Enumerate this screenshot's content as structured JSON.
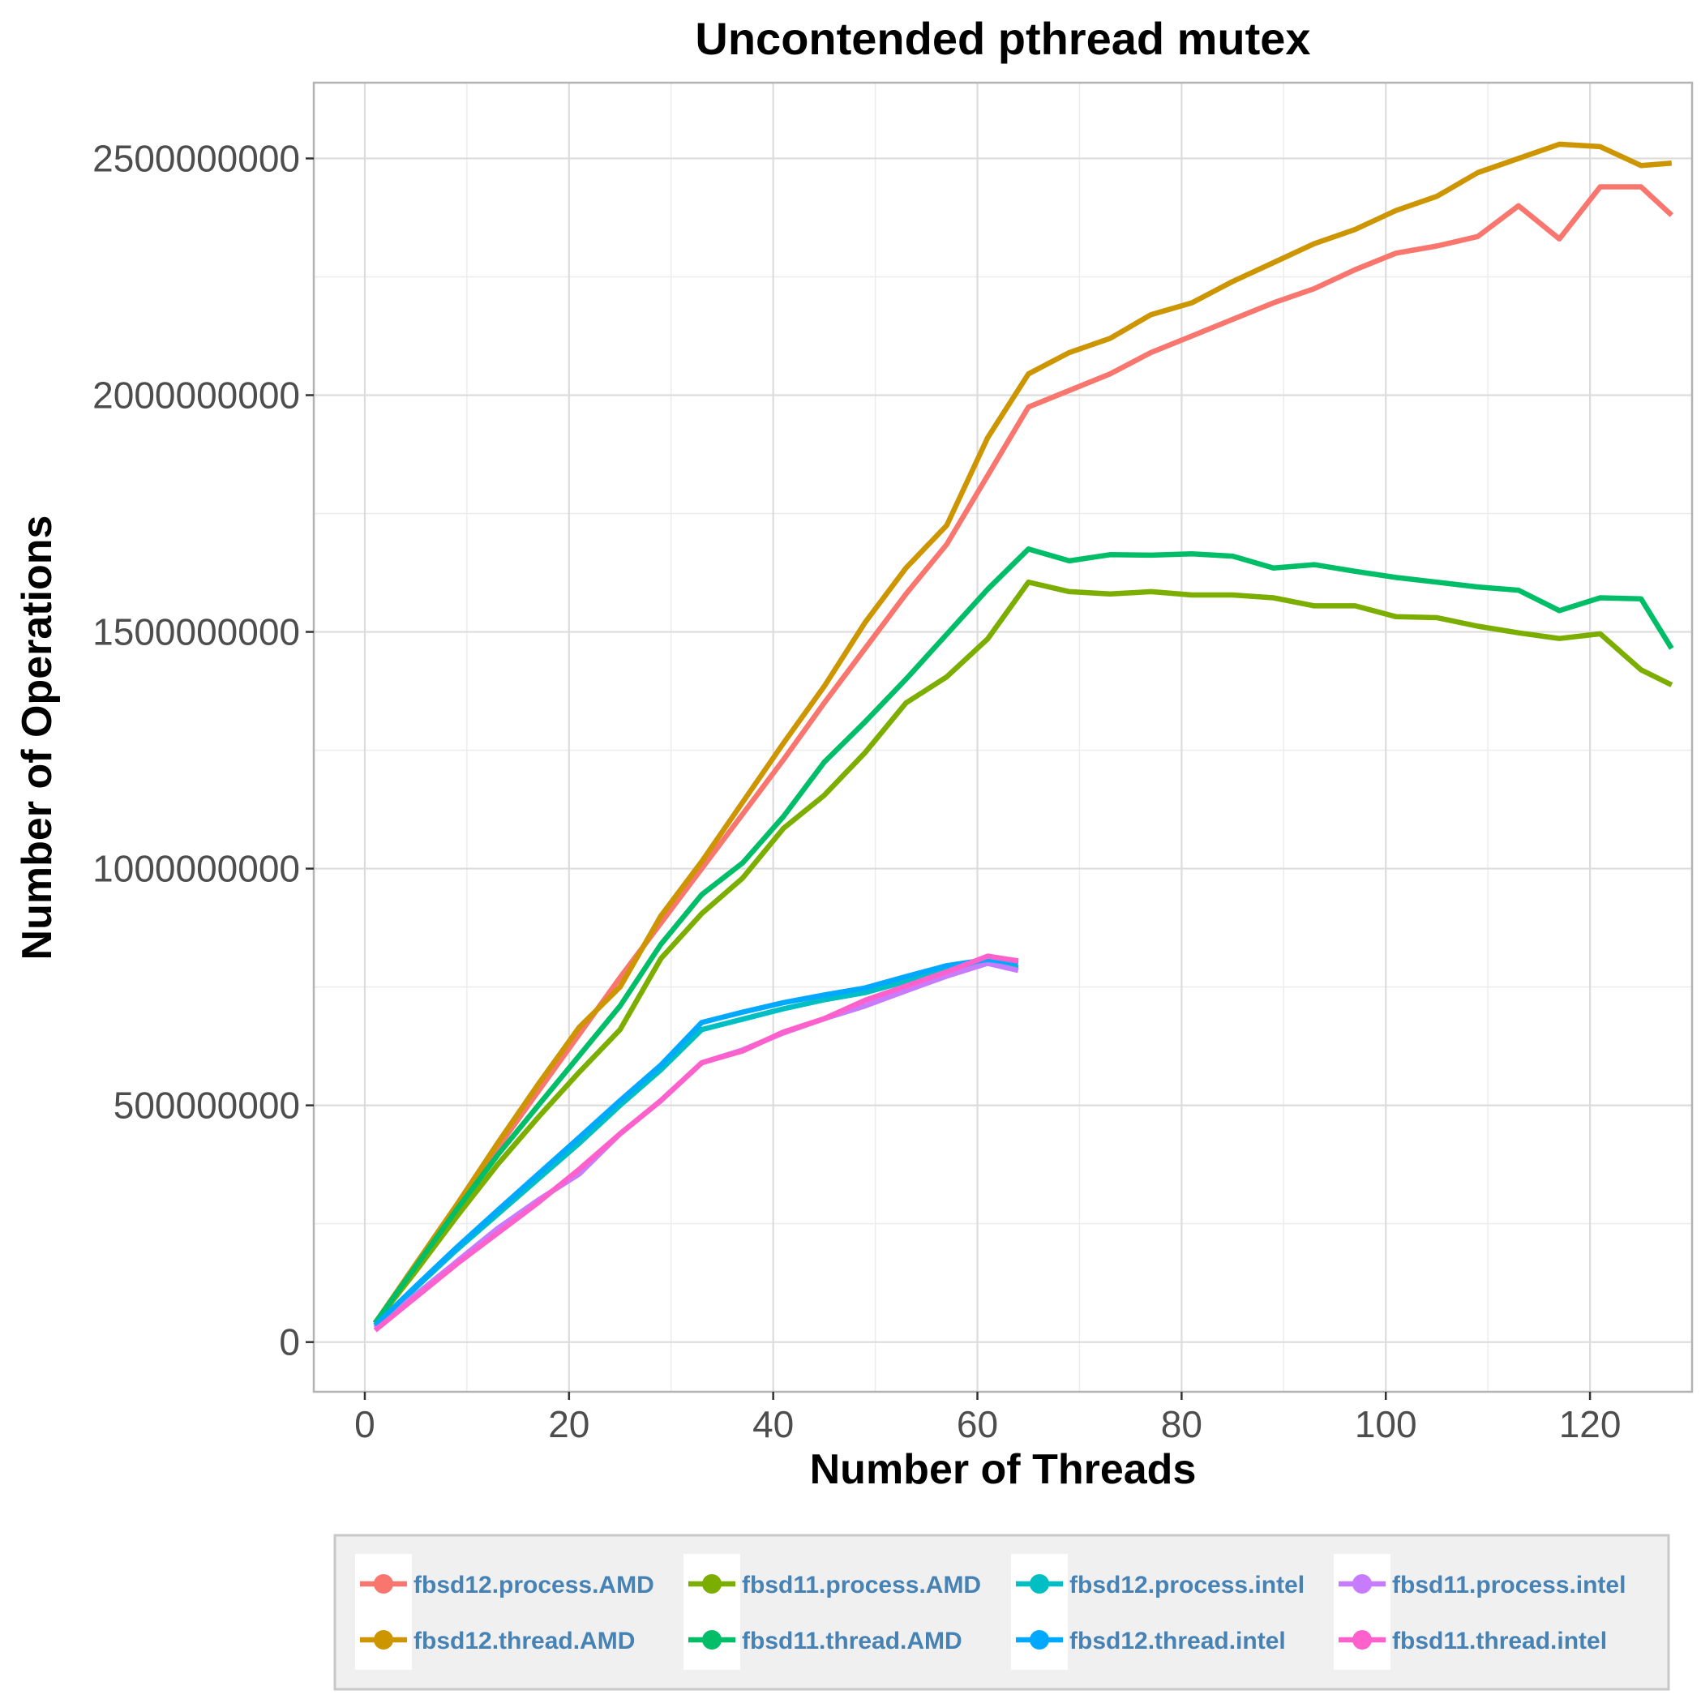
{
  "chart_data": {
    "type": "line",
    "title": "Uncontended pthread mutex",
    "xlabel": "Number of Threads",
    "ylabel": "Number of Operations",
    "xlim": [
      -5,
      130
    ],
    "ylim": [
      -105000000,
      2660000000
    ],
    "x_ticks": [
      0,
      20,
      40,
      60,
      80,
      100,
      120
    ],
    "y_ticks": [
      0,
      500000000,
      1000000000,
      1500000000,
      2000000000,
      2500000000
    ],
    "x_tick_labels": [
      "0",
      "20",
      "40",
      "60",
      "80",
      "100",
      "120"
    ],
    "y_tick_labels": [
      "0",
      "500000000",
      "1000000000",
      "1500000000",
      "2000000000",
      "2500000000"
    ],
    "grid": true,
    "legend_position": "bottom",
    "series": [
      {
        "name": "fbsd12.process.AMD",
        "color": "#F8766D",
        "x": [
          1,
          5,
          9,
          13,
          17,
          21,
          25,
          29,
          33,
          37,
          41,
          45,
          49,
          53,
          57,
          61,
          65,
          69,
          73,
          77,
          81,
          85,
          89,
          93,
          97,
          101,
          105,
          109,
          113,
          117,
          121,
          125,
          128
        ],
        "y": [
          40000000,
          160000000,
          285000000,
          410000000,
          530000000,
          650000000,
          770000000,
          885000000,
          1000000000,
          1115000000,
          1230000000,
          1350000000,
          1465000000,
          1580000000,
          1685000000,
          1830000000,
          1975000000,
          2010000000,
          2045000000,
          2090000000,
          2125000000,
          2160000000,
          2195000000,
          2225000000,
          2265000000,
          2300000000,
          2315000000,
          2335000000,
          2400000000,
          2330000000,
          2440000000,
          2440000000,
          2380000000
        ]
      },
      {
        "name": "fbsd11.process.AMD",
        "color": "#7CAE00",
        "x": [
          1,
          5,
          9,
          13,
          17,
          21,
          25,
          29,
          33,
          37,
          41,
          45,
          49,
          53,
          57,
          61,
          65,
          69,
          73,
          77,
          81,
          85,
          89,
          93,
          97,
          101,
          105,
          109,
          113,
          117,
          121,
          125,
          128
        ],
        "y": [
          40000000,
          150000000,
          265000000,
          375000000,
          475000000,
          570000000,
          660000000,
          810000000,
          905000000,
          980000000,
          1085000000,
          1155000000,
          1245000000,
          1350000000,
          1405000000,
          1485000000,
          1605000000,
          1585000000,
          1580000000,
          1585000000,
          1578000000,
          1578000000,
          1572000000,
          1555000000,
          1555000000,
          1532000000,
          1530000000,
          1512000000,
          1498000000,
          1486000000,
          1496000000,
          1420000000,
          1388000000
        ]
      },
      {
        "name": "fbsd12.process.intel",
        "color": "#00BFC4",
        "x": [
          1,
          5,
          9,
          13,
          17,
          21,
          25,
          29,
          33,
          37,
          41,
          45,
          49,
          53,
          57,
          61,
          64
        ],
        "y": [
          35000000,
          115000000,
          195000000,
          270000000,
          345000000,
          420000000,
          500000000,
          575000000,
          660000000,
          682000000,
          704000000,
          723000000,
          738000000,
          762000000,
          787000000,
          800000000,
          790000000
        ]
      },
      {
        "name": "fbsd11.process.intel",
        "color": "#C77CFF",
        "x": [
          1,
          5,
          9,
          13,
          17,
          21,
          25,
          29,
          33,
          37,
          41,
          45,
          49,
          53,
          57,
          61,
          64
        ],
        "y": [
          30000000,
          100000000,
          170000000,
          240000000,
          300000000,
          355000000,
          440000000,
          510000000,
          590000000,
          617000000,
          653000000,
          683000000,
          710000000,
          742000000,
          773000000,
          800000000,
          785000000
        ]
      },
      {
        "name": "fbsd12.thread.AMD",
        "color": "#CD9600",
        "x": [
          1,
          5,
          9,
          13,
          17,
          21,
          25,
          29,
          33,
          37,
          41,
          45,
          49,
          53,
          57,
          61,
          65,
          69,
          73,
          77,
          81,
          85,
          89,
          93,
          97,
          101,
          105,
          109,
          113,
          117,
          121,
          125,
          128
        ],
        "y": [
          40000000,
          165000000,
          290000000,
          420000000,
          545000000,
          665000000,
          750000000,
          900000000,
          1015000000,
          1140000000,
          1265000000,
          1385000000,
          1520000000,
          1635000000,
          1725000000,
          1910000000,
          2045000000,
          2090000000,
          2120000000,
          2170000000,
          2195000000,
          2240000000,
          2280000000,
          2320000000,
          2350000000,
          2390000000,
          2420000000,
          2470000000,
          2500000000,
          2530000000,
          2525000000,
          2485000000,
          2490000000
        ]
      },
      {
        "name": "fbsd11.thread.AMD",
        "color": "#00BE67",
        "x": [
          1,
          5,
          9,
          13,
          17,
          21,
          25,
          29,
          33,
          37,
          41,
          45,
          49,
          53,
          57,
          61,
          65,
          69,
          73,
          77,
          81,
          85,
          89,
          93,
          97,
          101,
          105,
          109,
          113,
          117,
          121,
          125,
          128
        ],
        "y": [
          40000000,
          160000000,
          280000000,
          395000000,
          500000000,
          605000000,
          710000000,
          840000000,
          945000000,
          1012000000,
          1110000000,
          1225000000,
          1310000000,
          1400000000,
          1495000000,
          1590000000,
          1675000000,
          1650000000,
          1663000000,
          1662000000,
          1665000000,
          1660000000,
          1635000000,
          1642000000,
          1628000000,
          1615000000,
          1605000000,
          1595000000,
          1588000000,
          1545000000,
          1572000000,
          1570000000,
          1465000000
        ]
      },
      {
        "name": "fbsd12.thread.intel",
        "color": "#00A9FF",
        "x": [
          1,
          5,
          9,
          13,
          17,
          21,
          25,
          29,
          33,
          37,
          41,
          45,
          49,
          53,
          57,
          61,
          64
        ],
        "y": [
          35000000,
          118000000,
          200000000,
          278000000,
          355000000,
          432000000,
          510000000,
          585000000,
          675000000,
          697000000,
          717000000,
          733000000,
          748000000,
          772000000,
          795000000,
          808000000,
          800000000
        ]
      },
      {
        "name": "fbsd11.thread.intel",
        "color": "#FF61CC",
        "x": [
          1,
          5,
          9,
          13,
          17,
          21,
          25,
          29,
          33,
          37,
          41,
          45,
          49,
          53,
          57,
          61,
          64
        ],
        "y": [
          25000000,
          95000000,
          165000000,
          230000000,
          295000000,
          365000000,
          440000000,
          510000000,
          590000000,
          615000000,
          655000000,
          683000000,
          722000000,
          752000000,
          782000000,
          815000000,
          805000000
        ]
      }
    ]
  }
}
